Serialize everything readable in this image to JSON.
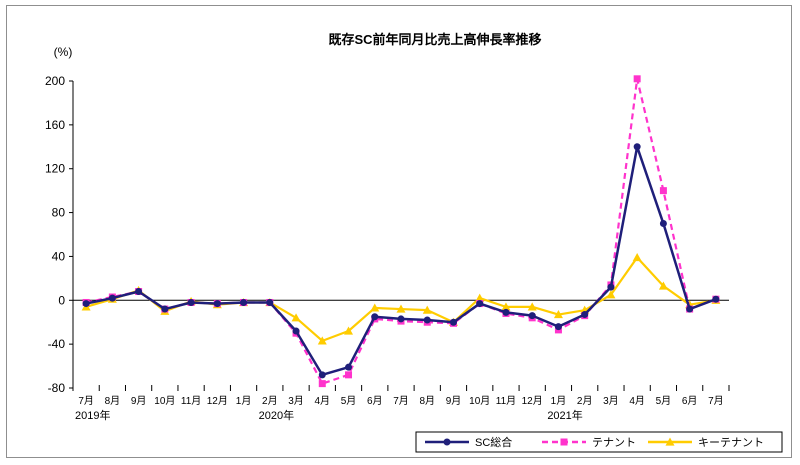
{
  "chart_data": {
    "type": "line",
    "title": "既存SC前年同月比売上高伸長率推移",
    "ylabel": "(%)",
    "xlabel": "",
    "ylim": [
      -80,
      200
    ],
    "yticks": [
      -80,
      -40,
      0,
      40,
      80,
      120,
      160,
      200
    ],
    "grid": false,
    "legend_position": "bottom-right",
    "categories": [
      "7月",
      "8月",
      "9月",
      "10月",
      "11月",
      "12月",
      "1月",
      "2月",
      "3月",
      "4月",
      "5月",
      "6月",
      "7月",
      "8月",
      "9月",
      "10月",
      "11月",
      "12月",
      "1月",
      "2月",
      "3月",
      "4月",
      "5月",
      "6月",
      "7月"
    ],
    "year_labels": [
      {
        "index": 0,
        "label": "2019年"
      },
      {
        "index": 7,
        "label": "2020年"
      },
      {
        "index": 18,
        "label": "2021年"
      }
    ],
    "series": [
      {
        "name": "SC総合",
        "color": "#1f1f7a",
        "dash": "solid",
        "marker": "circle",
        "values": [
          -3,
          2,
          8,
          -8,
          -2,
          -3,
          -2,
          -2,
          -28,
          -68,
          -61,
          -15,
          -17,
          -18,
          -20,
          -3,
          -11,
          -14,
          -24,
          -13,
          12,
          140,
          70,
          -8,
          1
        ]
      },
      {
        "name": "テナント",
        "color": "#ff33cc",
        "dash": "dashed",
        "marker": "square",
        "values": [
          -2,
          3,
          8,
          -8,
          -2,
          -3,
          -2,
          -2,
          -30,
          -76,
          -68,
          -17,
          -19,
          -20,
          -21,
          -3,
          -12,
          -16,
          -27,
          -14,
          14,
          202,
          100,
          -8,
          1
        ]
      },
      {
        "name": "キーテナント",
        "color": "#ffcc00",
        "dash": "solid",
        "marker": "triangle",
        "values": [
          -6,
          1,
          9,
          -10,
          -1,
          -4,
          -2,
          -2,
          -16,
          -37,
          -28,
          -7,
          -8,
          -9,
          -20,
          2,
          -6,
          -6,
          -13,
          -9,
          5,
          39,
          13,
          -4,
          0
        ]
      }
    ]
  }
}
